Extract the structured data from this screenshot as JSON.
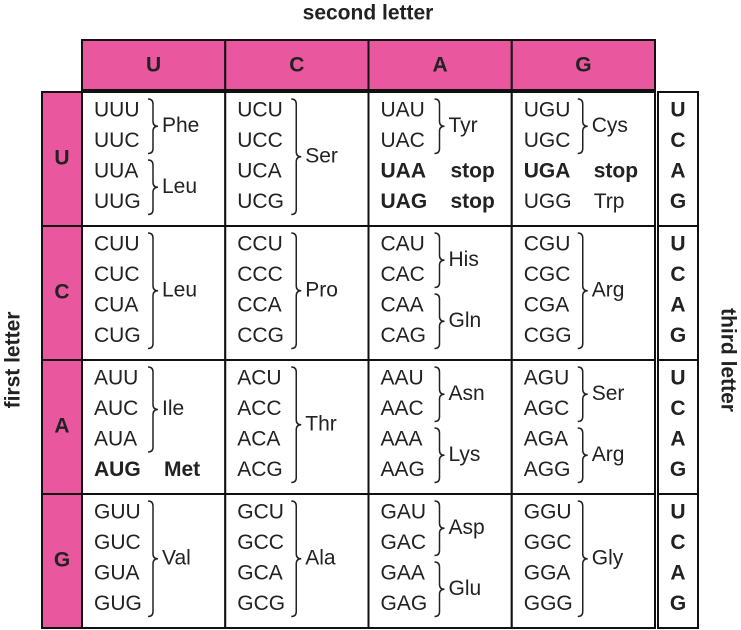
{
  "title": "second letter",
  "first_letter_label": "first letter",
  "third_letter_label": "third letter",
  "columns": [
    "U",
    "C",
    "A",
    "G"
  ],
  "rows": [
    {
      "letter": "U",
      "third": [
        "U",
        "C",
        "A",
        "G"
      ],
      "cells": [
        {
          "groups": [
            {
              "codons": [
                "UUU",
                "UUC"
              ],
              "aa": "Phe"
            },
            {
              "codons": [
                "UUA",
                "UUG"
              ],
              "aa": "Leu"
            }
          ]
        },
        {
          "groups": [
            {
              "codons": [
                "UCU",
                "UCC",
                "UCA",
                "UCG"
              ],
              "aa": "Ser"
            }
          ]
        },
        {
          "groups": [
            {
              "codons": [
                "UAU",
                "UAC"
              ],
              "aa": "Tyr"
            },
            {
              "codons": [
                "UAA"
              ],
              "aa": "stop",
              "color": "#c4213c"
            },
            {
              "codons": [
                "UAG"
              ],
              "aa": "stop",
              "color": "#c4213c"
            }
          ]
        },
        {
          "groups": [
            {
              "codons": [
                "UGU",
                "UGC"
              ],
              "aa": "Cys"
            },
            {
              "codons": [
                "UGA"
              ],
              "aa": "stop",
              "color": "#c4213c"
            },
            {
              "codons": [
                "UGG"
              ],
              "aa": "Trp"
            }
          ]
        }
      ]
    },
    {
      "letter": "C",
      "third": [
        "U",
        "C",
        "A",
        "G"
      ],
      "cells": [
        {
          "groups": [
            {
              "codons": [
                "CUU",
                "CUC",
                "CUA",
                "CUG"
              ],
              "aa": "Leu"
            }
          ]
        },
        {
          "groups": [
            {
              "codons": [
                "CCU",
                "CCC",
                "CCA",
                "CCG"
              ],
              "aa": "Pro"
            }
          ]
        },
        {
          "groups": [
            {
              "codons": [
                "CAU",
                "CAC"
              ],
              "aa": "His"
            },
            {
              "codons": [
                "CAA",
                "CAG"
              ],
              "aa": "Gln"
            }
          ]
        },
        {
          "groups": [
            {
              "codons": [
                "CGU",
                "CGC",
                "CGA",
                "CGG"
              ],
              "aa": "Arg"
            }
          ]
        }
      ]
    },
    {
      "letter": "A",
      "third": [
        "U",
        "C",
        "A",
        "G"
      ],
      "cells": [
        {
          "groups": [
            {
              "codons": [
                "AUU",
                "AUC",
                "AUA"
              ],
              "aa": "Ile"
            },
            {
              "codons": [
                "AUG"
              ],
              "aa": "Met",
              "color": "#8db43c"
            }
          ]
        },
        {
          "groups": [
            {
              "codons": [
                "ACU",
                "ACC",
                "ACA",
                "ACG"
              ],
              "aa": "Thr"
            }
          ]
        },
        {
          "groups": [
            {
              "codons": [
                "AAU",
                "AAC"
              ],
              "aa": "Asn"
            },
            {
              "codons": [
                "AAA",
                "AAG"
              ],
              "aa": "Lys"
            }
          ]
        },
        {
          "groups": [
            {
              "codons": [
                "AGU",
                "AGC"
              ],
              "aa": "Ser"
            },
            {
              "codons": [
                "AGA",
                "AGG"
              ],
              "aa": "Arg"
            }
          ]
        }
      ]
    },
    {
      "letter": "G",
      "third": [
        "U",
        "C",
        "A",
        "G"
      ],
      "cells": [
        {
          "groups": [
            {
              "codons": [
                "GUU",
                "GUC",
                "GUA",
                "GUG"
              ],
              "aa": "Val"
            }
          ]
        },
        {
          "groups": [
            {
              "codons": [
                "GCU",
                "GCC",
                "GCA",
                "GCG"
              ],
              "aa": "Ala"
            }
          ]
        },
        {
          "groups": [
            {
              "codons": [
                "GAU",
                "GAC"
              ],
              "aa": "Asp"
            },
            {
              "codons": [
                "GAA",
                "GAG"
              ],
              "aa": "Glu"
            }
          ]
        },
        {
          "groups": [
            {
              "codons": [
                "GGU",
                "GGC",
                "GGA",
                "GGG"
              ],
              "aa": "Gly"
            }
          ]
        }
      ]
    }
  ]
}
